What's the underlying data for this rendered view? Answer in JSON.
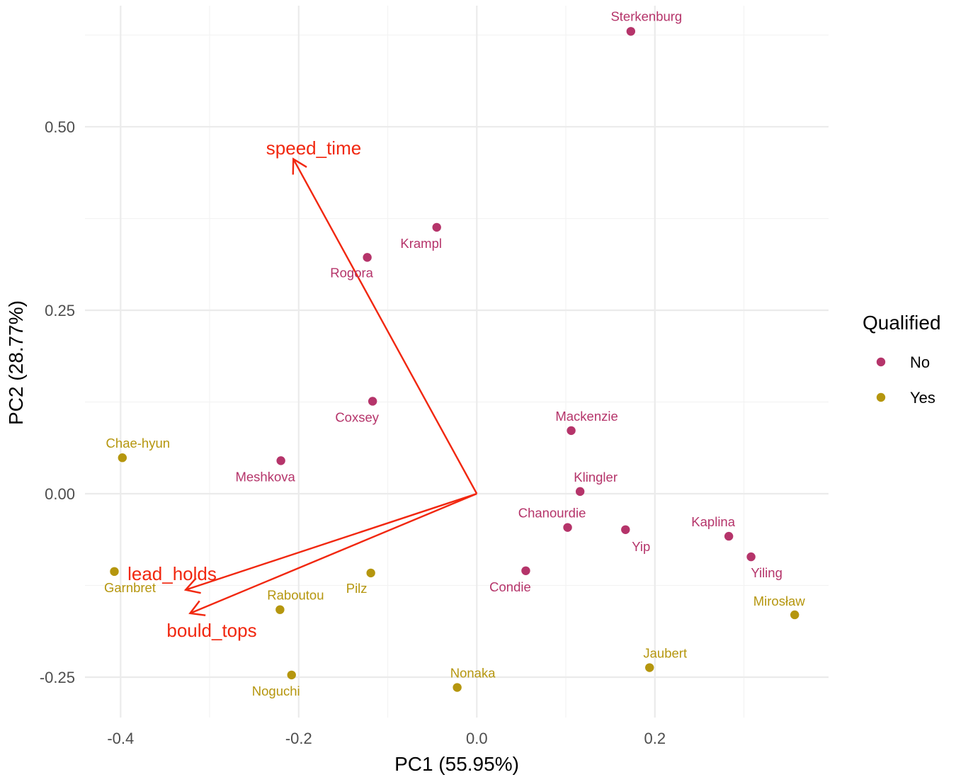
{
  "chart_data": {
    "type": "scatter",
    "subtype": "pca-biplot",
    "xlabel": "PC1 (55.95%)",
    "ylabel": "PC2 (28.77%)",
    "xlim": [
      -0.44,
      0.395
    ],
    "ylim": [
      -0.305,
      0.665
    ],
    "xticks": [
      {
        "value": -0.4,
        "label": "-0.4"
      },
      {
        "value": -0.2,
        "label": "-0.2"
      },
      {
        "value": 0.0,
        "label": "0.0"
      },
      {
        "value": 0.2,
        "label": "0.2"
      }
    ],
    "yticks": [
      {
        "value": -0.25,
        "label": "-0.25"
      },
      {
        "value": 0.0,
        "label": "0.00"
      },
      {
        "value": 0.25,
        "label": "0.25"
      },
      {
        "value": 0.5,
        "label": "0.50"
      }
    ],
    "legend": {
      "title": "Qualified",
      "position": "right",
      "entries": [
        {
          "label": "No",
          "color": "#B5346A"
        },
        {
          "label": "Yes",
          "color": "#B5960E"
        }
      ]
    },
    "series": [
      {
        "name": "No",
        "color": "#B5346A",
        "points": [
          {
            "label": "Sterkenburg",
            "x": 0.173,
            "y": 0.63
          },
          {
            "label": "Krampl",
            "x": -0.045,
            "y": 0.363
          },
          {
            "label": "Rogora",
            "x": -0.123,
            "y": 0.322
          },
          {
            "label": "Coxsey",
            "x": -0.117,
            "y": 0.126
          },
          {
            "label": "Meshkova",
            "x": -0.22,
            "y": 0.045
          },
          {
            "label": "Mackenzie",
            "x": 0.106,
            "y": 0.086
          },
          {
            "label": "Klingler",
            "x": 0.116,
            "y": 0.003
          },
          {
            "label": "Chanourdie",
            "x": 0.102,
            "y": -0.046
          },
          {
            "label": "Yip",
            "x": 0.167,
            "y": -0.049
          },
          {
            "label": "Kaplina",
            "x": 0.283,
            "y": -0.058
          },
          {
            "label": "Yiling",
            "x": 0.308,
            "y": -0.086
          },
          {
            "label": "Condie",
            "x": 0.055,
            "y": -0.105
          }
        ]
      },
      {
        "name": "Yes",
        "color": "#B5960E",
        "points": [
          {
            "label": "Chae-hyun",
            "x": -0.398,
            "y": 0.049
          },
          {
            "label": "Garnbret",
            "x": -0.407,
            "y": -0.106
          },
          {
            "label": "Pilz",
            "x": -0.119,
            "y": -0.108
          },
          {
            "label": "Raboutou",
            "x": -0.221,
            "y": -0.158
          },
          {
            "label": "Noguchi",
            "x": -0.208,
            "y": -0.247
          },
          {
            "label": "Nonaka",
            "x": -0.022,
            "y": -0.264
          },
          {
            "label": "Jaubert",
            "x": 0.194,
            "y": -0.237
          },
          {
            "label": "Mirosław",
            "x": 0.357,
            "y": -0.165
          }
        ]
      }
    ],
    "loadings": {
      "color": "#F1270F",
      "vectors": [
        {
          "label": "speed_time",
          "x": -0.206,
          "y": 0.456
        },
        {
          "label": "lead_holds",
          "x": -0.327,
          "y": -0.131
        },
        {
          "label": "bould_tops",
          "x": -0.322,
          "y": -0.163
        }
      ]
    }
  }
}
